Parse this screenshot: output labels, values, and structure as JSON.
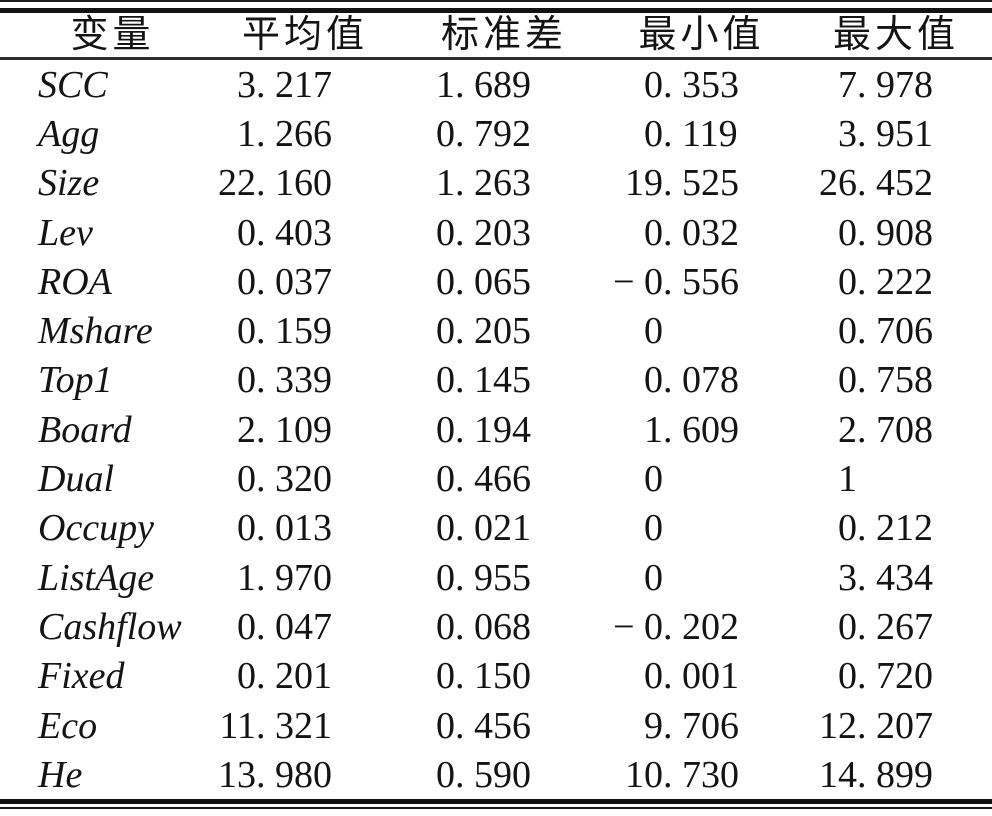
{
  "table": {
    "columns": [
      "变量",
      "平均值",
      "标准差",
      "最小值",
      "最大值"
    ],
    "column_keys": [
      "variable",
      "mean",
      "sd",
      "min",
      "max"
    ],
    "rows": [
      {
        "var": "SCC",
        "values": [
          "3. 217",
          "1. 689",
          "0. 353",
          "7. 978"
        ]
      },
      {
        "var": "Agg",
        "values": [
          "1. 266",
          "0. 792",
          "0. 119",
          "3. 951"
        ]
      },
      {
        "var": "Size",
        "values": [
          "22. 160",
          "1. 263",
          "19. 525",
          "26. 452"
        ]
      },
      {
        "var": "Lev",
        "values": [
          "0. 403",
          "0. 203",
          "0. 032",
          "0. 908"
        ]
      },
      {
        "var": "ROA",
        "values": [
          "0. 037",
          "0. 065",
          "− 0. 556",
          "0. 222"
        ]
      },
      {
        "var": "Mshare",
        "values": [
          "0. 159",
          "0. 205",
          "0",
          "0. 706"
        ]
      },
      {
        "var": "Top1",
        "values": [
          "0. 339",
          "0. 145",
          "0. 078",
          "0. 758"
        ]
      },
      {
        "var": "Board",
        "values": [
          "2. 109",
          "0. 194",
          "1. 609",
          "2. 708"
        ]
      },
      {
        "var": "Dual",
        "values": [
          "0. 320",
          "0. 466",
          "0",
          "1"
        ]
      },
      {
        "var": "Occupy",
        "values": [
          "0. 013",
          "0. 021",
          "0",
          "0. 212"
        ]
      },
      {
        "var": "ListAge",
        "values": [
          "1. 970",
          "0. 955",
          "0",
          "3. 434"
        ]
      },
      {
        "var": "Cashflow",
        "values": [
          "0. 047",
          "0. 068",
          "− 0. 202",
          "0. 267"
        ]
      },
      {
        "var": "Fixed",
        "values": [
          "0. 201",
          "0. 150",
          "0. 001",
          "0. 720"
        ]
      },
      {
        "var": "Eco",
        "values": [
          "11. 321",
          "0. 456",
          "9. 706",
          "12. 207"
        ]
      },
      {
        "var": "He",
        "values": [
          "13. 980",
          "0. 590",
          "10. 730",
          "14. 899"
        ]
      }
    ],
    "rule_color": "#121212",
    "text_color": "#141414"
  }
}
